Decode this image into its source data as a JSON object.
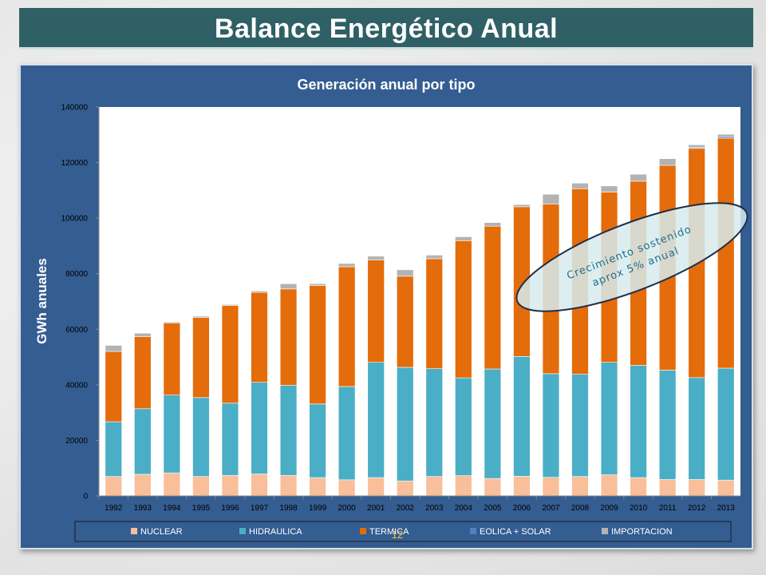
{
  "slide": {
    "title": "Balance Energético Anual",
    "page_number": "12"
  },
  "colors": {
    "title_bar": "#2f6065",
    "panel": "#345d91",
    "nuclear": "#f8bf9a",
    "hidraulica": "#4aaec6",
    "termica": "#e46c0a",
    "eolica_solar": "#4f81bd",
    "importacion": "#b3b3b3"
  },
  "chart_data": {
    "type": "bar",
    "stacked": true,
    "title": "Generación anual por tipo",
    "ylabel": "GWh anuales",
    "xlabel": "",
    "ylim": [
      0,
      140000
    ],
    "yticks": [
      0,
      20000,
      40000,
      60000,
      80000,
      100000,
      120000,
      140000
    ],
    "grid": false,
    "legend_position": "bottom",
    "categories": [
      "1992",
      "1993",
      "1994",
      "1995",
      "1996",
      "1997",
      "1998",
      "1999",
      "2000",
      "2001",
      "2002",
      "2003",
      "2004",
      "2005",
      "2006",
      "2007",
      "2008",
      "2009",
      "2010",
      "2011",
      "2012",
      "2013"
    ],
    "series": [
      {
        "name": "NUCLEAR",
        "color": "#f8bf9a",
        "values": [
          7000,
          7800,
          8300,
          7000,
          7400,
          7900,
          7400,
          6600,
          5800,
          6600,
          5400,
          7000,
          7300,
          6300,
          7100,
          6700,
          7000,
          7600,
          6600,
          5900,
          5900,
          5700
        ]
      },
      {
        "name": "HIDRAULICA",
        "color": "#4aaec6",
        "values": [
          19700,
          23600,
          28000,
          28400,
          26000,
          33000,
          32400,
          26500,
          33600,
          41500,
          40900,
          38800,
          35200,
          39400,
          43100,
          37300,
          36800,
          40500,
          40400,
          39400,
          36700,
          40300
        ]
      },
      {
        "name": "TERMICA",
        "color": "#e46c0a",
        "values": [
          25300,
          25900,
          26000,
          28800,
          35200,
          32400,
          34700,
          42600,
          43100,
          36800,
          32800,
          39600,
          49400,
          51400,
          53900,
          61100,
          66800,
          61300,
          66300,
          73700,
          82500,
          82800
        ]
      },
      {
        "name": "EOLICA + SOLAR",
        "color": "#4f81bd",
        "values": [
          0,
          0,
          0,
          0,
          0,
          0,
          0,
          0,
          0,
          0,
          0,
          0,
          0,
          0,
          0,
          0,
          0,
          0,
          0,
          0,
          300,
          500
        ]
      },
      {
        "name": "IMPORTACION",
        "color": "#b3b3b3",
        "values": [
          2200,
          1300,
          300,
          500,
          300,
          500,
          1900,
          700,
          1200,
          1400,
          2300,
          1300,
          1400,
          1300,
          800,
          3500,
          2000,
          2200,
          2500,
          2400,
          1000,
          900
        ]
      }
    ],
    "annotation": {
      "line1": "Crecimiento sostenido",
      "line2": "aprox 5% anual"
    }
  }
}
